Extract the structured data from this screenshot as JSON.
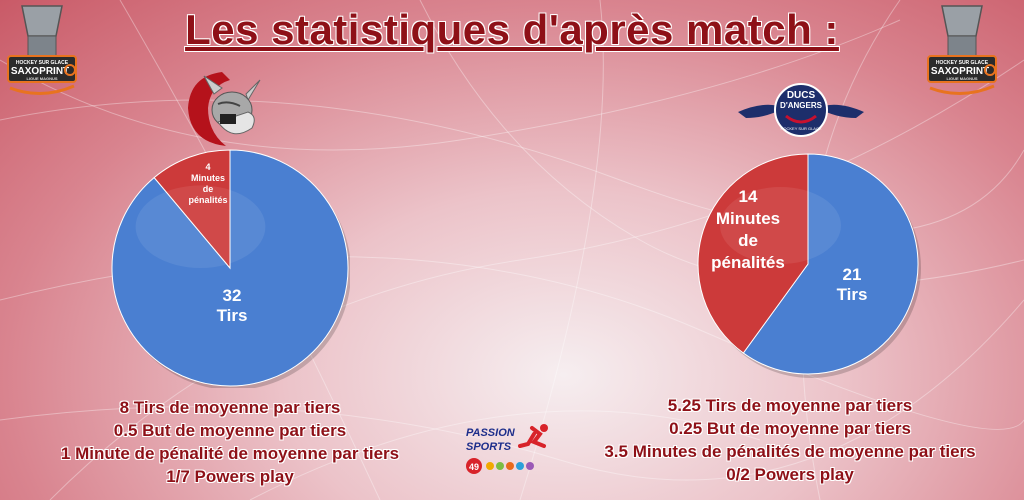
{
  "title": "Les statistiques d'après match :",
  "league_logo": {
    "line1": "HOCKEY SUR GLACE",
    "brand": "SAXOPRINT",
    "line2": "LIGUE MAGNUS"
  },
  "team_left": {
    "logo_icon": "viking-mascot-icon"
  },
  "team_right": {
    "logo_line1": "DUCS",
    "logo_line2": "D'ANGERS",
    "logo_line3": "HOCKEY SUR GLACE"
  },
  "colors": {
    "shots": "#4a7fd1",
    "penalties": "#cc3a3a",
    "title": "#8e1017"
  },
  "chart_data": [
    {
      "type": "pie",
      "slices": [
        {
          "label_value": "32",
          "label_text": "Tirs",
          "value": 32,
          "color": "#4a7fd1"
        },
        {
          "label_value": "4",
          "label_text": "Minutes de pénalités",
          "value": 4,
          "color": "#cc3a3a"
        }
      ]
    },
    {
      "type": "pie",
      "slices": [
        {
          "label_value": "21",
          "label_text": "Tirs",
          "value": 21,
          "color": "#4a7fd1"
        },
        {
          "label_value": "14",
          "label_text": "Minutes de pénalités",
          "value": 14,
          "color": "#cc3a3a"
        }
      ]
    }
  ],
  "stats_left": [
    "8 Tirs de moyenne par tiers",
    "0.5 But de moyenne par tiers",
    "1 Minute de pénalité de moyenne par tiers",
    "1/7 Powers play"
  ],
  "stats_right": [
    "5.25 Tirs de moyenne par tiers",
    "0.25 But de moyenne par tiers",
    "3.5 Minutes de pénalités de moyenne par tiers",
    "0/2 Powers play"
  ],
  "sponsor": {
    "line1": "PASSION",
    "line2": "SPORTS",
    "number": "49"
  }
}
